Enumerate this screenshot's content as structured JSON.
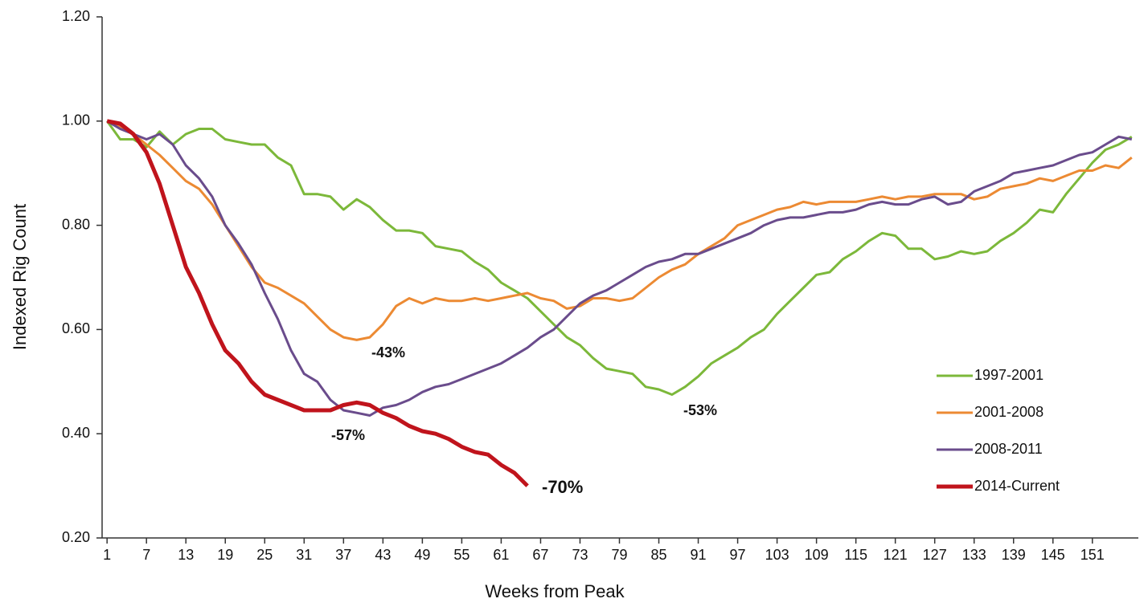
{
  "chart_data": {
    "type": "line",
    "x_label": "Weeks from Peak",
    "y_label": "Indexed Rig Count",
    "x": [
      1,
      3,
      5,
      7,
      9,
      11,
      13,
      15,
      17,
      19,
      21,
      23,
      25,
      27,
      29,
      31,
      33,
      35,
      37,
      39,
      41,
      43,
      45,
      47,
      49,
      51,
      53,
      55,
      57,
      59,
      61,
      63,
      65,
      67,
      69,
      71,
      73,
      75,
      77,
      79,
      81,
      83,
      85,
      87,
      89,
      91,
      93,
      95,
      97,
      99,
      101,
      103,
      105,
      107,
      109,
      111,
      113,
      115,
      117,
      119,
      121,
      123,
      125,
      127,
      129,
      131,
      133,
      135,
      137,
      139,
      141,
      143,
      145,
      147,
      149,
      151,
      153,
      155,
      157
    ],
    "xlim": [
      0,
      158
    ],
    "xticks": [
      1,
      7,
      13,
      19,
      25,
      31,
      37,
      43,
      49,
      55,
      61,
      67,
      73,
      79,
      85,
      91,
      97,
      103,
      109,
      115,
      121,
      127,
      133,
      139,
      145,
      151
    ],
    "ylim": [
      0.2,
      1.2
    ],
    "yticks": [
      {
        "value": 0.2,
        "label": "0.20"
      },
      {
        "value": 0.4,
        "label": "0.40"
      },
      {
        "value": 0.6,
        "label": "0.60"
      },
      {
        "value": 0.8,
        "label": "0.80"
      },
      {
        "value": 1.0,
        "label": "1.00"
      },
      {
        "value": 1.2,
        "label": "1.20"
      }
    ],
    "legend": "lower right",
    "series": [
      {
        "name": "1997-2001",
        "color": "#7cb83a",
        "values": [
          1.0,
          0.965,
          0.965,
          0.95,
          0.98,
          0.955,
          0.975,
          0.985,
          0.985,
          0.965,
          0.96,
          0.955,
          0.955,
          0.93,
          0.915,
          0.86,
          0.86,
          0.855,
          0.83,
          0.85,
          0.835,
          0.81,
          0.79,
          0.79,
          0.785,
          0.76,
          0.755,
          0.75,
          0.73,
          0.715,
          0.69,
          0.675,
          0.66,
          0.635,
          0.61,
          0.585,
          0.57,
          0.545,
          0.525,
          0.52,
          0.515,
          0.49,
          0.485,
          0.475,
          0.49,
          0.51,
          0.535,
          0.55,
          0.565,
          0.585,
          0.6,
          0.63,
          0.655,
          0.68,
          0.705,
          0.71,
          0.735,
          0.75,
          0.77,
          0.785,
          0.78,
          0.755,
          0.755,
          0.735,
          0.74,
          0.75,
          0.745,
          0.75,
          0.77,
          0.785,
          0.805,
          0.83,
          0.825,
          0.86,
          0.89,
          0.92,
          0.945,
          0.955,
          0.97
        ]
      },
      {
        "name": "2001-2008",
        "color": "#ec8a33",
        "values": [
          1.0,
          0.99,
          0.975,
          0.955,
          0.935,
          0.91,
          0.885,
          0.87,
          0.84,
          0.8,
          0.76,
          0.72,
          0.69,
          0.68,
          0.665,
          0.65,
          0.625,
          0.6,
          0.585,
          0.58,
          0.585,
          0.61,
          0.645,
          0.66,
          0.65,
          0.66,
          0.655,
          0.655,
          0.66,
          0.655,
          0.66,
          0.665,
          0.67,
          0.66,
          0.655,
          0.64,
          0.645,
          0.66,
          0.66,
          0.655,
          0.66,
          0.68,
          0.7,
          0.715,
          0.725,
          0.745,
          0.76,
          0.775,
          0.8,
          0.81,
          0.82,
          0.83,
          0.835,
          0.845,
          0.84,
          0.845,
          0.845,
          0.845,
          0.85,
          0.855,
          0.85,
          0.855,
          0.855,
          0.86,
          0.86,
          0.86,
          0.85,
          0.855,
          0.87,
          0.875,
          0.88,
          0.89,
          0.885,
          0.895,
          0.905,
          0.905,
          0.915,
          0.91,
          0.93
        ]
      },
      {
        "name": "2008-2011",
        "color": "#6a4c8c",
        "values": [
          1.0,
          0.985,
          0.975,
          0.965,
          0.975,
          0.955,
          0.915,
          0.89,
          0.855,
          0.8,
          0.765,
          0.725,
          0.67,
          0.62,
          0.56,
          0.515,
          0.5,
          0.465,
          0.445,
          0.44,
          0.435,
          0.45,
          0.455,
          0.465,
          0.48,
          0.49,
          0.495,
          0.505,
          0.515,
          0.525,
          0.535,
          0.55,
          0.565,
          0.585,
          0.6,
          0.625,
          0.65,
          0.665,
          0.675,
          0.69,
          0.705,
          0.72,
          0.73,
          0.735,
          0.745,
          0.745,
          0.755,
          0.765,
          0.775,
          0.785,
          0.8,
          0.81,
          0.815,
          0.815,
          0.82,
          0.825,
          0.825,
          0.83,
          0.84,
          0.845,
          0.84,
          0.84,
          0.85,
          0.855,
          0.84,
          0.845,
          0.865,
          0.875,
          0.885,
          0.9,
          0.905,
          0.91,
          0.915,
          0.925,
          0.935,
          0.94,
          0.955,
          0.97,
          0.965
        ]
      },
      {
        "name": "2014-Current",
        "color": "#c0141c",
        "values": [
          1.0,
          0.995,
          0.975,
          0.94,
          0.88,
          0.8,
          0.72,
          0.67,
          0.61,
          0.56,
          0.535,
          0.5,
          0.475,
          0.465,
          0.455,
          0.445,
          0.445,
          0.445,
          0.455,
          0.46,
          0.455,
          0.44,
          0.43,
          0.415,
          0.405,
          0.4,
          0.39,
          0.375,
          0.365,
          0.36,
          0.34,
          0.325,
          0.3,
          null,
          null,
          null,
          null,
          null,
          null,
          null,
          null,
          null,
          null,
          null,
          null,
          null,
          null,
          null,
          null,
          null,
          null,
          null,
          null,
          null,
          null,
          null,
          null,
          null,
          null,
          null,
          null,
          null,
          null,
          null,
          null,
          null,
          null,
          null,
          null,
          null,
          null,
          null,
          null,
          null,
          null,
          null,
          null,
          null,
          null
        ]
      }
    ],
    "annotations": [
      "-43%",
      "-57%",
      "-53%",
      "-70%"
    ]
  }
}
